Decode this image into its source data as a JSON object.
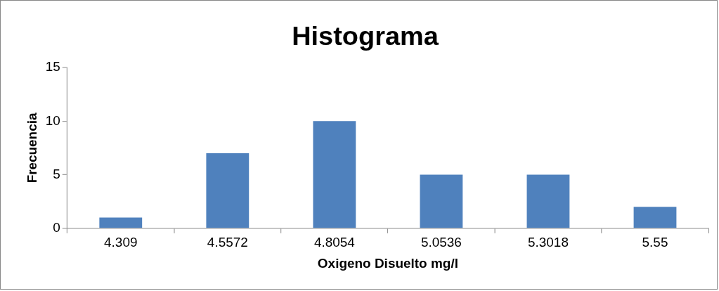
{
  "chart_data": {
    "type": "bar",
    "title": "Histograma",
    "xlabel": "Oxigeno Disuelto mg/l",
    "ylabel": "Frecuencia",
    "categories": [
      "4.309",
      "4.5572",
      "4.8054",
      "5.0536",
      "5.3018",
      "5.55"
    ],
    "values": [
      1,
      7,
      10,
      5,
      5,
      2
    ],
    "color": "#4f81bd",
    "ylim": [
      0,
      15
    ],
    "yticks": [
      0,
      5,
      10,
      15
    ]
  }
}
